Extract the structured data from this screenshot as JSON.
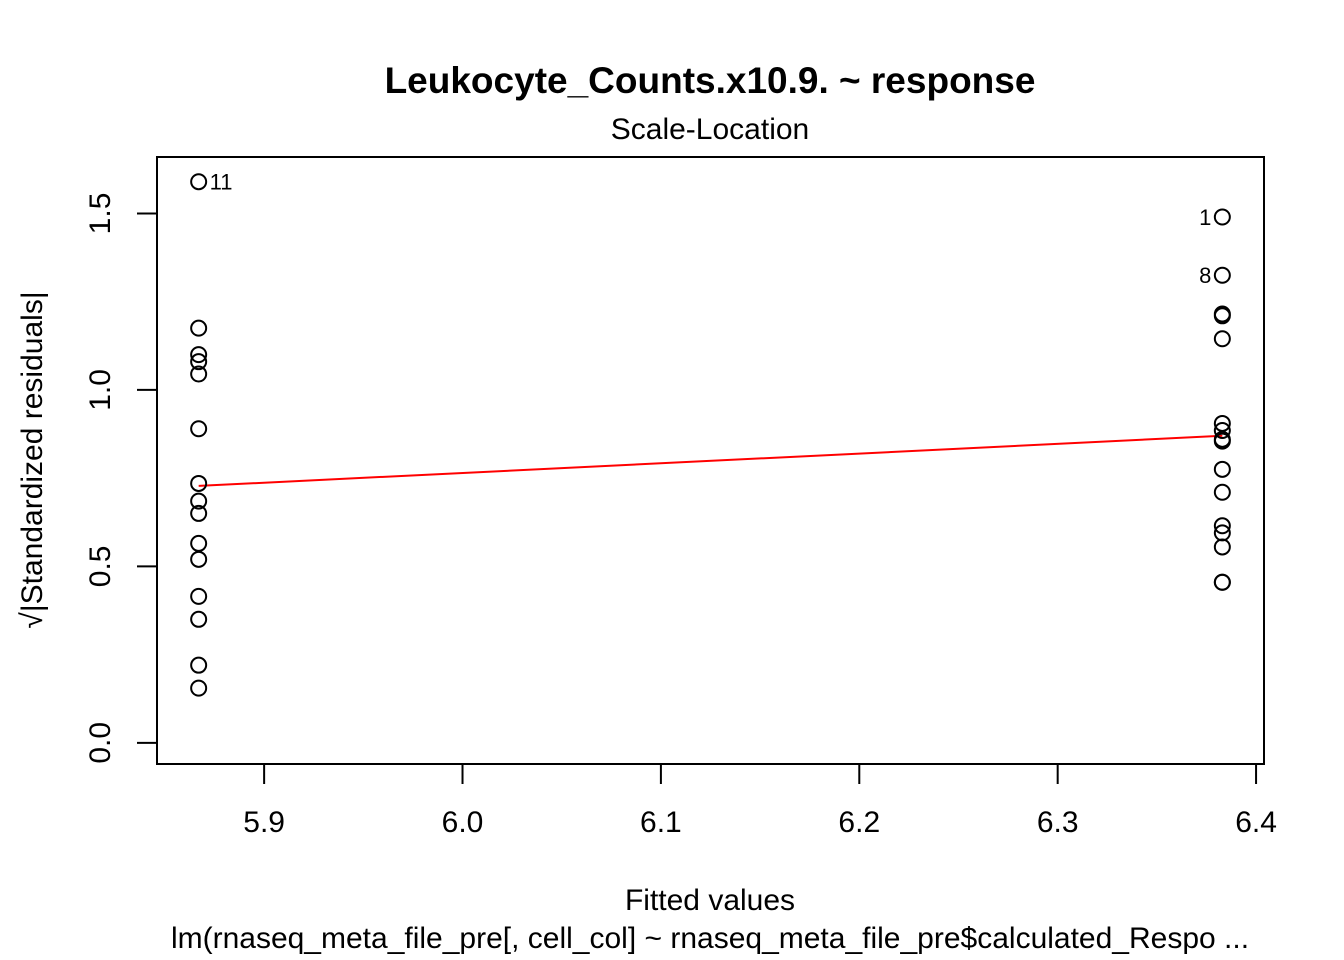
{
  "chart_data": {
    "type": "scatter",
    "title": "Leukocyte_Counts.x10.9. ~ response",
    "subtitle": "Scale-Location",
    "xlabel": "Fitted values",
    "ylabel": "√|Standardized residuals|",
    "caption": "lm(rnaseq_meta_file_pre[, cell_col] ~ rnaseq_meta_file_pre$calculated_Respo ...",
    "xlim": [
      5.846,
      6.404
    ],
    "ylim": [
      -0.06,
      1.66
    ],
    "x_ticks": [
      "5.9",
      "6.0",
      "6.1",
      "6.2",
      "6.3",
      "6.4"
    ],
    "y_ticks": [
      "0.0",
      "0.5",
      "1.0",
      "1.5"
    ],
    "grid": false,
    "legend": "none",
    "points": [
      {
        "x": 5.867,
        "y": 1.59,
        "label": "11"
      },
      {
        "x": 5.867,
        "y": 1.175
      },
      {
        "x": 5.867,
        "y": 1.1
      },
      {
        "x": 5.867,
        "y": 1.08
      },
      {
        "x": 5.867,
        "y": 1.045
      },
      {
        "x": 5.867,
        "y": 0.89
      },
      {
        "x": 5.867,
        "y": 0.735
      },
      {
        "x": 5.867,
        "y": 0.685
      },
      {
        "x": 5.867,
        "y": 0.65
      },
      {
        "x": 5.867,
        "y": 0.565
      },
      {
        "x": 5.867,
        "y": 0.52
      },
      {
        "x": 5.867,
        "y": 0.415
      },
      {
        "x": 5.867,
        "y": 0.35
      },
      {
        "x": 5.867,
        "y": 0.22
      },
      {
        "x": 5.867,
        "y": 0.155
      },
      {
        "x": 6.383,
        "y": 1.49,
        "label": "1"
      },
      {
        "x": 6.383,
        "y": 1.325,
        "label": "8"
      },
      {
        "x": 6.383,
        "y": 1.215
      },
      {
        "x": 6.383,
        "y": 1.21
      },
      {
        "x": 6.383,
        "y": 1.145
      },
      {
        "x": 6.383,
        "y": 0.905
      },
      {
        "x": 6.383,
        "y": 0.885
      },
      {
        "x": 6.383,
        "y": 0.86
      },
      {
        "x": 6.383,
        "y": 0.855
      },
      {
        "x": 6.383,
        "y": 0.775
      },
      {
        "x": 6.383,
        "y": 0.71
      },
      {
        "x": 6.383,
        "y": 0.615
      },
      {
        "x": 6.383,
        "y": 0.595
      },
      {
        "x": 6.383,
        "y": 0.555
      },
      {
        "x": 6.383,
        "y": 0.455
      },
      {
        "x": 6.383,
        "y": 0.455
      }
    ],
    "smooth_line": {
      "x": [
        5.867,
        6.383
      ],
      "y": [
        0.728,
        0.87
      ]
    },
    "colors": {
      "points": "#000000",
      "smooth": "#ff0000"
    }
  }
}
